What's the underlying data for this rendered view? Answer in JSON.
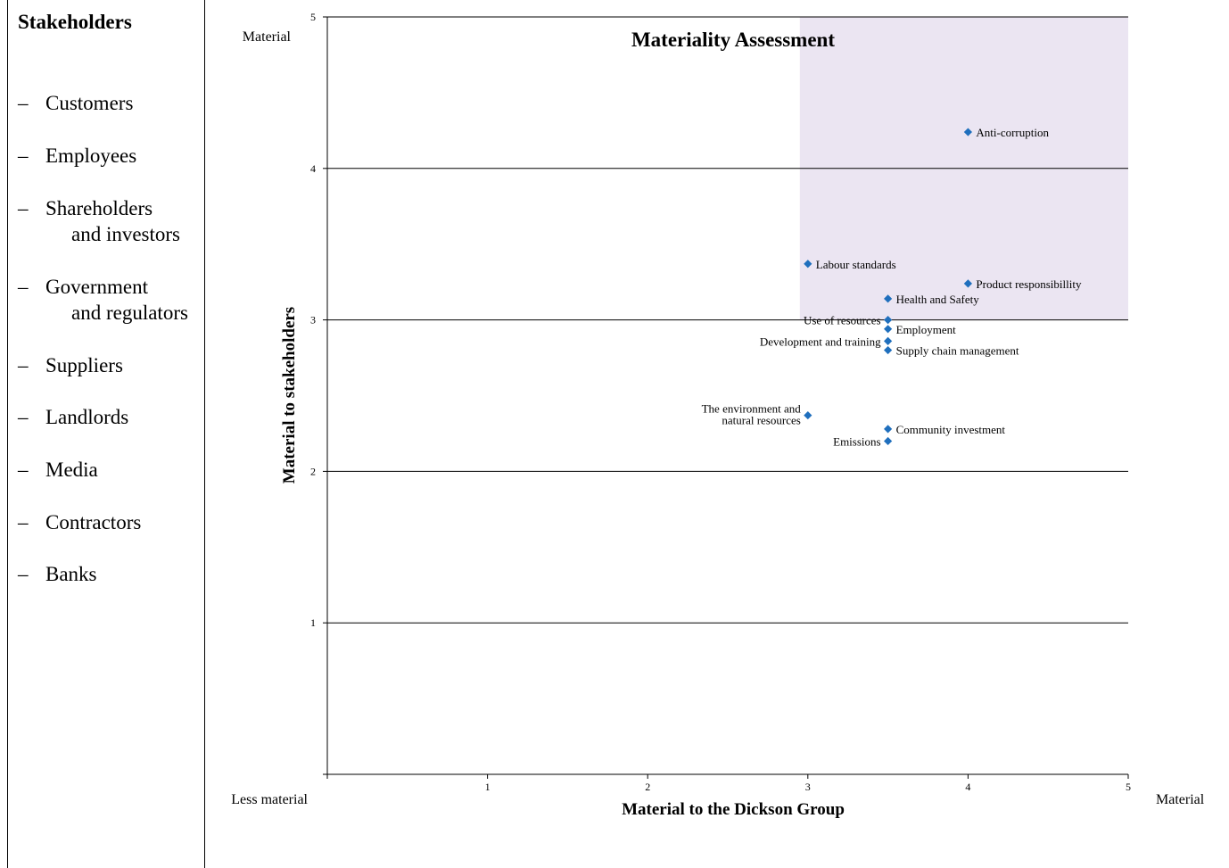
{
  "stakeholders": {
    "title": "Stakeholders",
    "items": [
      {
        "line1": "Customers"
      },
      {
        "line1": "Employees"
      },
      {
        "line1": "Shareholders",
        "line2": "and investors"
      },
      {
        "line1": "Government",
        "line2": "and regulators"
      },
      {
        "line1": "Suppliers"
      },
      {
        "line1": "Landlords"
      },
      {
        "line1": "Media"
      },
      {
        "line1": "Contractors"
      },
      {
        "line1": "Banks"
      }
    ]
  },
  "chart_data": {
    "type": "scatter",
    "title": "Materiality Assessment",
    "xlabel": "Material to the Dickson Group",
    "ylabel": "Material to stakeholders",
    "xlim": [
      0,
      5
    ],
    "ylim": [
      0,
      5
    ],
    "xticks": [
      1,
      2,
      3,
      4,
      5
    ],
    "yticks": [
      1,
      2,
      3,
      4,
      5
    ],
    "grid": "horizontal",
    "edge_labels": {
      "y_top": "Material",
      "x_left": "Less material",
      "x_right": "Material"
    },
    "highlight_region": {
      "x": [
        2.95,
        5
      ],
      "y": [
        3,
        5
      ],
      "color": "#ebe5f2"
    },
    "marker_color": "#1f6fbd",
    "points": [
      {
        "name": "Anti-corruption",
        "x": 4.0,
        "y": 4.24,
        "align": "right"
      },
      {
        "name": "Labour standards",
        "x": 3.0,
        "y": 3.37,
        "align": "right"
      },
      {
        "name": "Product responsibillity",
        "x": 4.0,
        "y": 3.24,
        "align": "right"
      },
      {
        "name": "Health and Safety",
        "x": 3.5,
        "y": 3.14,
        "align": "right"
      },
      {
        "name": "Use of resources",
        "x": 3.5,
        "y": 3.0,
        "align": "left"
      },
      {
        "name": "Employment",
        "x": 3.5,
        "y": 2.94,
        "align": "right"
      },
      {
        "name": "Development and training",
        "x": 3.5,
        "y": 2.86,
        "align": "left"
      },
      {
        "name": "Supply chain management",
        "x": 3.5,
        "y": 2.8,
        "align": "right"
      },
      {
        "name": "The environment and",
        "name2": "natural resources",
        "x": 3.0,
        "y": 2.37,
        "align": "left"
      },
      {
        "name": "Community investment",
        "x": 3.5,
        "y": 2.28,
        "align": "right"
      },
      {
        "name": "Emissions",
        "x": 3.5,
        "y": 2.2,
        "align": "left"
      }
    ]
  }
}
